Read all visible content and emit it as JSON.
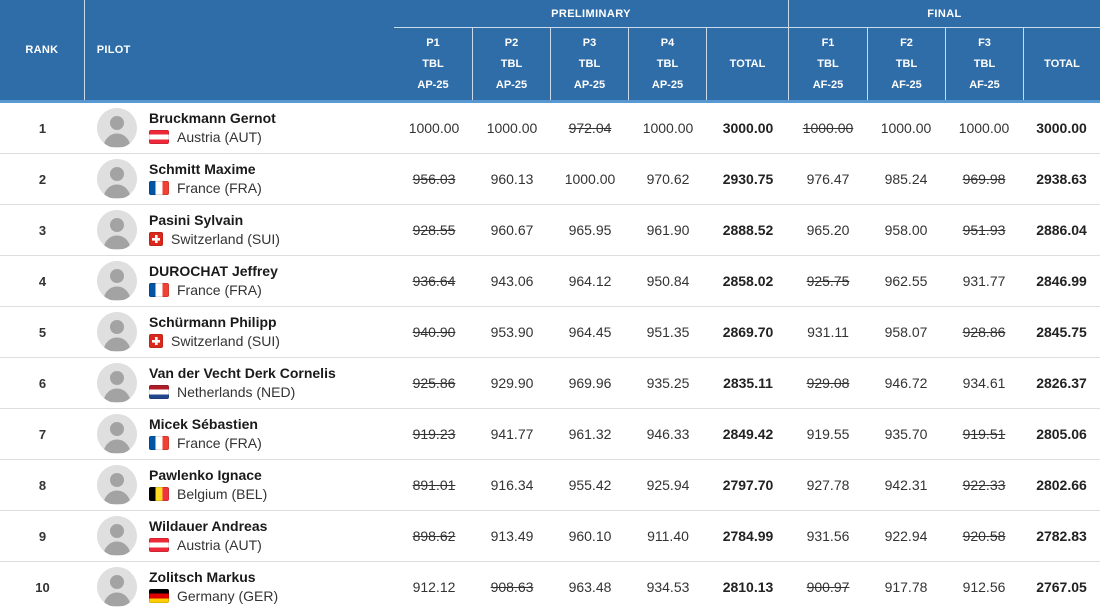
{
  "colors": {
    "header_bg": "#2F6DA8",
    "header_text": "#FFFFFF",
    "header_divider": "#BFD4E6",
    "header_bottom_border": "#5899D2",
    "row_divider": "#DDDDDD",
    "body_text": "#333333"
  },
  "table": {
    "header": {
      "rank_label": "RANK",
      "pilot_label": "PILOT",
      "groups": [
        {
          "label": "PRELIMINARY",
          "columns": [
            {
              "code": "P1",
              "sub1": "TBL",
              "sub2": "AP-25"
            },
            {
              "code": "P2",
              "sub1": "TBL",
              "sub2": "AP-25"
            },
            {
              "code": "P3",
              "sub1": "TBL",
              "sub2": "AP-25"
            },
            {
              "code": "P4",
              "sub1": "TBL",
              "sub2": "AP-25"
            },
            {
              "total_label": "TOTAL"
            }
          ]
        },
        {
          "label": "FINAL",
          "columns": [
            {
              "code": "F1",
              "sub1": "TBL",
              "sub2": "AF-25"
            },
            {
              "code": "F2",
              "sub1": "TBL",
              "sub2": "AF-25"
            },
            {
              "code": "F3",
              "sub1": "TBL",
              "sub2": "AF-25"
            },
            {
              "total_label": "TOTAL"
            }
          ]
        }
      ]
    },
    "rows": [
      {
        "rank": "1",
        "name": "Bruckmann Gernot",
        "country": "Austria (AUT)",
        "country_code": "AUT",
        "scores": [
          {
            "value": "1000.00"
          },
          {
            "value": "1000.00"
          },
          {
            "value": "972.04",
            "struck": true
          },
          {
            "value": "1000.00"
          },
          {
            "value": "3000.00",
            "bold": true
          },
          {
            "value": "1000.00",
            "struck": true
          },
          {
            "value": "1000.00"
          },
          {
            "value": "1000.00"
          },
          {
            "value": "3000.00",
            "bold": true
          }
        ]
      },
      {
        "rank": "2",
        "name": "Schmitt Maxime",
        "country": "France (FRA)",
        "country_code": "FRA",
        "scores": [
          {
            "value": "956.03",
            "struck": true
          },
          {
            "value": "960.13"
          },
          {
            "value": "1000.00"
          },
          {
            "value": "970.62"
          },
          {
            "value": "2930.75",
            "bold": true
          },
          {
            "value": "976.47"
          },
          {
            "value": "985.24"
          },
          {
            "value": "969.98",
            "struck": true
          },
          {
            "value": "2938.63",
            "bold": true
          }
        ]
      },
      {
        "rank": "3",
        "name": "Pasini Sylvain",
        "country": "Switzerland (SUI)",
        "country_code": "SUI",
        "scores": [
          {
            "value": "928.55",
            "struck": true
          },
          {
            "value": "960.67"
          },
          {
            "value": "965.95"
          },
          {
            "value": "961.90"
          },
          {
            "value": "2888.52",
            "bold": true
          },
          {
            "value": "965.20"
          },
          {
            "value": "958.00"
          },
          {
            "value": "951.93",
            "struck": true
          },
          {
            "value": "2886.04",
            "bold": true
          }
        ]
      },
      {
        "rank": "4",
        "name": "DUROCHAT Jeffrey",
        "country": "France (FRA)",
        "country_code": "FRA",
        "scores": [
          {
            "value": "936.64",
            "struck": true
          },
          {
            "value": "943.06"
          },
          {
            "value": "964.12"
          },
          {
            "value": "950.84"
          },
          {
            "value": "2858.02",
            "bold": true
          },
          {
            "value": "925.75",
            "struck": true
          },
          {
            "value": "962.55"
          },
          {
            "value": "931.77"
          },
          {
            "value": "2846.99",
            "bold": true
          }
        ]
      },
      {
        "rank": "5",
        "name": "Schürmann Philipp",
        "country": "Switzerland (SUI)",
        "country_code": "SUI",
        "scores": [
          {
            "value": "940.90",
            "struck": true
          },
          {
            "value": "953.90"
          },
          {
            "value": "964.45"
          },
          {
            "value": "951.35"
          },
          {
            "value": "2869.70",
            "bold": true
          },
          {
            "value": "931.11"
          },
          {
            "value": "958.07"
          },
          {
            "value": "928.86",
            "struck": true
          },
          {
            "value": "2845.75",
            "bold": true
          }
        ]
      },
      {
        "rank": "6",
        "name": "Van der Vecht Derk Cornelis",
        "country": "Netherlands (NED)",
        "country_code": "NED",
        "scores": [
          {
            "value": "925.86",
            "struck": true
          },
          {
            "value": "929.90"
          },
          {
            "value": "969.96"
          },
          {
            "value": "935.25"
          },
          {
            "value": "2835.11",
            "bold": true
          },
          {
            "value": "929.08",
            "struck": true
          },
          {
            "value": "946.72"
          },
          {
            "value": "934.61"
          },
          {
            "value": "2826.37",
            "bold": true
          }
        ]
      },
      {
        "rank": "7",
        "name": "Micek Sébastien",
        "country": "France (FRA)",
        "country_code": "FRA",
        "scores": [
          {
            "value": "919.23",
            "struck": true
          },
          {
            "value": "941.77"
          },
          {
            "value": "961.32"
          },
          {
            "value": "946.33"
          },
          {
            "value": "2849.42",
            "bold": true
          },
          {
            "value": "919.55"
          },
          {
            "value": "935.70"
          },
          {
            "value": "919.51",
            "struck": true
          },
          {
            "value": "2805.06",
            "bold": true
          }
        ]
      },
      {
        "rank": "8",
        "name": "Pawlenko Ignace",
        "country": "Belgium (BEL)",
        "country_code": "BEL",
        "scores": [
          {
            "value": "891.01",
            "struck": true
          },
          {
            "value": "916.34"
          },
          {
            "value": "955.42"
          },
          {
            "value": "925.94"
          },
          {
            "value": "2797.70",
            "bold": true
          },
          {
            "value": "927.78"
          },
          {
            "value": "942.31"
          },
          {
            "value": "922.33",
            "struck": true
          },
          {
            "value": "2802.66",
            "bold": true
          }
        ]
      },
      {
        "rank": "9",
        "name": "Wildauer Andreas",
        "country": "Austria (AUT)",
        "country_code": "AUT",
        "scores": [
          {
            "value": "898.62",
            "struck": true
          },
          {
            "value": "913.49"
          },
          {
            "value": "960.10"
          },
          {
            "value": "911.40"
          },
          {
            "value": "2784.99",
            "bold": true
          },
          {
            "value": "931.56"
          },
          {
            "value": "922.94"
          },
          {
            "value": "920.58",
            "struck": true
          },
          {
            "value": "2782.83",
            "bold": true
          }
        ]
      },
      {
        "rank": "10",
        "name": "Zolitsch Markus",
        "country": "Germany (GER)",
        "country_code": "GER",
        "scores": [
          {
            "value": "912.12"
          },
          {
            "value": "908.63",
            "struck": true
          },
          {
            "value": "963.48"
          },
          {
            "value": "934.53"
          },
          {
            "value": "2810.13",
            "bold": true
          },
          {
            "value": "900.97",
            "struck": true
          },
          {
            "value": "917.78"
          },
          {
            "value": "912.56"
          },
          {
            "value": "2767.05",
            "bold": true
          }
        ]
      }
    ]
  }
}
